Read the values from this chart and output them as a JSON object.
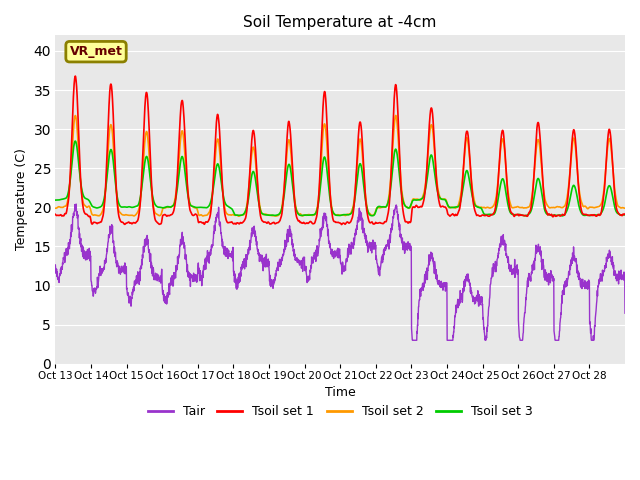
{
  "title": "Soil Temperature at -4cm",
  "xlabel": "Time",
  "ylabel": "Temperature (C)",
  "ylim": [
    0,
    42
  ],
  "yticks": [
    0,
    5,
    10,
    15,
    20,
    25,
    30,
    35,
    40
  ],
  "bg_color": "#e8e8e8",
  "label_box": "VR_met",
  "label_box_color": "#ffff99",
  "label_box_edge": "#8B8000",
  "colors": {
    "Tair": "#9933cc",
    "Tsoil1": "#ff0000",
    "Tsoil2": "#ff9900",
    "Tsoil3": "#00cc00"
  },
  "legend_labels": [
    "Tair",
    "Tsoil set 1",
    "Tsoil set 2",
    "Tsoil set 3"
  ],
  "xtick_labels": [
    "Oct 13",
    "Oct 14",
    "Oct 15",
    "Oct 16",
    "Oct 17",
    "Oct 18",
    "Oct 19",
    "Oct 20",
    "Oct 21",
    "Oct 22",
    "Oct 23",
    "Oct 24",
    "Oct 25",
    "Oct 26",
    "Oct 27",
    "Oct 28"
  ],
  "n_days": 16,
  "pts_per_day": 144
}
